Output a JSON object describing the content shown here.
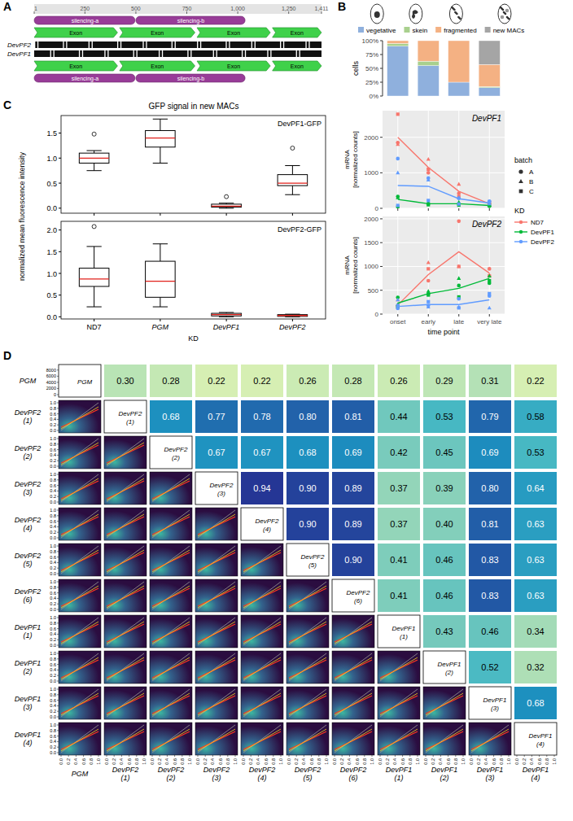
{
  "panel_labels": [
    "A",
    "B",
    "C",
    "D"
  ],
  "gene_map": {
    "range": [
      1,
      1411
    ],
    "ticks": [
      1,
      250,
      500,
      750,
      {
        "value": 1000,
        "label": "1,000"
      },
      {
        "value": 1250,
        "label": "1,250"
      },
      {
        "value": 1411,
        "label": "1,411"
      }
    ],
    "tracks": [
      "DevPF2",
      "DevPF1"
    ],
    "silencing": [
      {
        "label": "silencing-a",
        "start": 1,
        "end": 500
      },
      {
        "label": "silencing-b",
        "start": 500,
        "end": 1040
      }
    ],
    "exons": [
      {
        "label": "Exon",
        "start": 1,
        "end": 410
      },
      {
        "label": "Exon",
        "start": 420,
        "end": 790
      },
      {
        "label": "Exon",
        "start": 800,
        "end": 1160
      },
      {
        "label": "Exon",
        "start": 1170,
        "end": 1411
      }
    ]
  },
  "panel_b": {
    "batch_legend": {
      "title": "batch",
      "items": [
        {
          "name": "A",
          "marker": "circle"
        },
        {
          "name": "B",
          "marker": "triangle"
        },
        {
          "name": "C",
          "marker": "square"
        }
      ]
    },
    "kd_legend": {
      "title": "KD",
      "items": [
        {
          "name": "ND7",
          "color": "#f8766d"
        },
        {
          "name": "DevPF1",
          "color": "#00ba38"
        },
        {
          "name": "DevPF2",
          "color": "#619cff"
        }
      ]
    }
  },
  "panel_c": {
    "title": "GFP signal in new MACs",
    "ylabel": "normalized mean fluorescence intensity"
  },
  "chart_data": [
    {
      "type": "bar",
      "stacked": true,
      "legend": "top",
      "tick_labels": "y",
      "ylabel": "cells",
      "categories": [
        "onset",
        "early",
        "late",
        "very late"
      ],
      "series": [
        {
          "name": "vegetative",
          "color": "#8fb0dd",
          "values": [
            90,
            55,
            25,
            15
          ]
        },
        {
          "name": "skein",
          "color": "#a9d08e",
          "values": [
            5,
            8,
            0,
            2
          ]
        },
        {
          "name": "fragmented",
          "color": "#f4b183",
          "values": [
            5,
            37,
            75,
            40
          ]
        },
        {
          "name": "new MACs",
          "color": "#a5a5a5",
          "values": [
            0,
            0,
            0,
            43
          ]
        }
      ],
      "ylim": [
        0,
        100
      ],
      "yticks": [
        {
          "value": 0,
          "label": "0%"
        },
        {
          "value": 25,
          "label": "25%"
        },
        {
          "value": 50,
          "label": "50%"
        },
        {
          "value": 75,
          "label": "75%"
        },
        {
          "value": 100,
          "label": "100%"
        }
      ]
    },
    {
      "type": "line",
      "title": "DevPF1",
      "ylabel": "mRNA\n[normalized counts]",
      "grid": true,
      "tick_labels": "y",
      "categories": [
        "onset",
        "early",
        "late",
        "very late"
      ],
      "ylim": [
        0,
        2750
      ],
      "yticks": [
        0,
        1000,
        2000
      ],
      "series": [
        {
          "values": [
            2000,
            1150,
            480,
            130
          ],
          "points": [
            [
              1850,
              1000,
              420,
              130
            ],
            [
              1800,
              1380,
              680,
              100
            ],
            [
              2650,
              1100,
              330,
              160
            ]
          ]
        },
        {
          "values": [
            250,
            130,
            130,
            80
          ],
          "points": [
            [
              330,
              130,
              120,
              60
            ],
            [
              300,
              150,
              170,
              90
            ],
            [
              30,
              100,
              90,
              80
            ]
          ]
        },
        {
          "values": [
            640,
            620,
            270,
            150
          ],
          "points": [
            [
              1400,
              850,
              280,
              200
            ],
            [
              1000,
              800,
              300,
              130
            ],
            [
              80,
              220,
              120,
              180
            ]
          ]
        }
      ]
    },
    {
      "type": "line",
      "title": "DevPF2",
      "ylabel": "mRNA\n[normalized counts]",
      "xlabel": "time point",
      "grid": true,
      "categories": [
        "onset",
        "early",
        "late",
        "very late"
      ],
      "ylim": [
        0,
        2050
      ],
      "yticks": [
        0,
        500,
        1000,
        1500,
        2000
      ],
      "series": [
        {
          "values": [
            190,
            830,
            1310,
            860
          ],
          "points": [
            [
              180,
              700,
              1950,
              950
            ],
            [
              300,
              1080,
              1000,
              820
            ],
            [
              150,
              950,
              1000,
              800
            ]
          ]
        },
        {
          "values": [
            230,
            430,
            540,
            750
          ],
          "points": [
            [
              350,
              420,
              600,
              650
            ],
            [
              200,
              480,
              750,
              800
            ],
            [
              150,
              400,
              360,
              700
            ]
          ]
        },
        {
          "values": [
            160,
            200,
            200,
            300
          ],
          "points": [
            [
              120,
              180,
              320,
              380
            ],
            [
              300,
              150,
              150,
              130
            ],
            [
              180,
              260,
              130,
              430
            ]
          ]
        }
      ]
    },
    {
      "type": "box",
      "title": "DevPF1-GFP",
      "tick_labels": "y",
      "categories": [
        "ND7",
        "PGM",
        "DevPF1",
        "DevPF2"
      ],
      "min": [
        0.75,
        0.9,
        0,
        0.27
      ],
      "q1": [
        0.9,
        1.22,
        0.02,
        0.45
      ],
      "median": [
        1,
        1.4,
        0.04,
        0.5
      ],
      "q3": [
        1.1,
        1.55,
        0.08,
        0.67
      ],
      "max": [
        1.15,
        1.78,
        0.1,
        0.85
      ],
      "outliers": [
        [
          1.48
        ],
        [],
        [
          0.23
        ],
        [
          1.2
        ]
      ],
      "ylim": [
        -0.1,
        1.85
      ],
      "yticks": [
        {
          "value": 0,
          "label": "0.0"
        },
        0.5,
        {
          "value": 1,
          "label": "1.0"
        },
        1.5
      ]
    },
    {
      "type": "box",
      "title": "DevPF2-GFP",
      "xlabel": "KD",
      "categories": [
        "ND7",
        "PGM",
        "DevPF1",
        "DevPF2"
      ],
      "min": [
        0.23,
        0.23,
        0,
        0
      ],
      "q1": [
        0.7,
        0.45,
        0.02,
        0.01
      ],
      "median": [
        0.87,
        0.82,
        0.05,
        0.03
      ],
      "q3": [
        1.12,
        1.28,
        0.08,
        0.05
      ],
      "max": [
        1.62,
        1.68,
        0.1,
        0.06
      ],
      "outliers": [
        [
          2.08
        ],
        [],
        [],
        []
      ],
      "ylim": [
        -0.05,
        2.2
      ],
      "yticks": [
        {
          "value": 0,
          "label": "0.0"
        },
        0.5,
        {
          "value": 1,
          "label": "1.0"
        },
        1.5,
        {
          "value": 2,
          "label": "2.0"
        }
      ]
    },
    {
      "type": "heatmap",
      "labels": [
        "PGM",
        "DevPF2 (1)",
        "DevPF2 (2)",
        "DevPF2 (3)",
        "DevPF2 (4)",
        "DevPF2 (5)",
        "DevPF2 (6)",
        "DevPF1 (1)",
        "DevPF1 (2)",
        "DevPF1 (3)",
        "DevPF1 (4)"
      ],
      "xlim": [
        0,
        1
      ],
      "axis_ticks": [
        {
          "value": 0,
          "label": "0.0"
        },
        0.2,
        0.4,
        0.6,
        0.8,
        {
          "value": 1,
          "label": "1.0"
        }
      ],
      "hist_ylim": [
        0,
        9000
      ],
      "hist_yticks": [
        0,
        2000,
        4000,
        6000,
        8000
      ],
      "cells": [
        [
          null,
          {
            "value": 0.3,
            "label": "0.30"
          },
          0.28,
          0.22,
          0.22,
          0.26,
          0.28,
          0.26,
          0.29,
          0.31,
          0.22
        ],
        [
          null,
          null,
          0.68,
          0.77,
          0.78,
          {
            "value": 0.8,
            "label": "0.80"
          },
          0.81,
          0.44,
          0.53,
          0.79,
          0.58
        ],
        [
          null,
          null,
          null,
          0.67,
          0.67,
          0.68,
          0.69,
          0.42,
          0.45,
          0.69,
          0.53
        ],
        [
          null,
          null,
          null,
          null,
          0.94,
          {
            "value": 0.9,
            "label": "0.90"
          },
          0.89,
          0.37,
          0.39,
          {
            "value": 0.8,
            "label": "0.80"
          },
          0.64
        ],
        [
          null,
          null,
          null,
          null,
          null,
          {
            "value": 0.9,
            "label": "0.90"
          },
          0.89,
          0.37,
          {
            "value": 0.4,
            "label": "0.40"
          },
          0.81,
          0.63
        ],
        [
          null,
          null,
          null,
          null,
          null,
          null,
          {
            "value": 0.9,
            "label": "0.90"
          },
          0.41,
          0.46,
          0.83,
          0.63
        ],
        [
          null,
          null,
          null,
          null,
          null,
          null,
          null,
          0.41,
          0.46,
          0.83,
          0.63
        ],
        [
          null,
          null,
          null,
          null,
          null,
          null,
          null,
          null,
          0.43,
          0.46,
          0.34
        ],
        [
          null,
          null,
          null,
          null,
          null,
          null,
          null,
          null,
          null,
          0.52,
          0.32
        ],
        [
          null,
          null,
          null,
          null,
          null,
          null,
          null,
          null,
          null,
          null,
          0.68
        ],
        [
          null,
          null,
          null,
          null,
          null,
          null,
          null,
          null,
          null,
          null,
          null
        ]
      ]
    }
  ]
}
